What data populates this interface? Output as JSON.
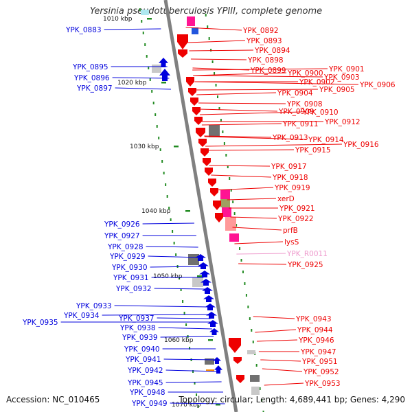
{
  "title": "Yersinia pseudotuberculosis YPIII, complete genome",
  "accession": "Accession: NC_010465",
  "topology": "Topology: circular; Length: 4,689,441 bp; Genes: 4,290",
  "colors": {
    "backbone": "#808080",
    "minus_strand": "#0000dd",
    "plus_strand": "#ee0000",
    "rna": "#ee99cc",
    "tick": "#228b22",
    "tick_label": "#111111",
    "pink_block": "#ff1493",
    "light_pink": "#ff9999",
    "gray_block": "#707070",
    "light_gray": "#c8c8c8",
    "orange": "#ff8c00",
    "olive": "#a0a060",
    "cyan": "#aee8f0"
  },
  "scale": {
    "unit": "kbp",
    "labels": [
      "1010 kbp",
      "1020 kbp",
      "1030 kbp",
      "1040 kbp",
      "1050 kbp",
      "1060 kbp",
      "1070 kbp"
    ]
  },
  "left_genes": [
    "YPK_0883",
    "YPK_0895",
    "YPK_0896",
    "YPK_0897",
    "YPK_0926",
    "YPK_0927",
    "YPK_0928",
    "YPK_0929",
    "YPK_0930",
    "YPK_0931",
    "YPK_0932",
    "YPK_0933",
    "YPK_0934",
    "YPK_0935",
    "YPK_0937",
    "YPK_0938",
    "YPK_0939",
    "YPK_0940",
    "YPK_0941",
    "YPK_0942",
    "YPK_0945",
    "YPK_0948",
    "YPK_0949"
  ],
  "right_genes": [
    "YPK_0892",
    "YPK_0893",
    "YPK_0894",
    "YPK_0898",
    "YPK_0899",
    "YPK_0900",
    "YPK_0901",
    "YPK_0902",
    "YPK_0903",
    "YPK_0906",
    "YPK_0904",
    "YPK_0905",
    "YPK_0908",
    "YPK_0909",
    "YPK_0910",
    "YPK_0911",
    "YPK_0912",
    "YPK_0913",
    "YPK_0914",
    "YPK_0916",
    "YPK_0915",
    "YPK_0917",
    "YPK_0918",
    "YPK_0919",
    "xerD",
    "YPK_0921",
    "YPK_0922",
    "prfB",
    "lysS",
    "YPK_R0011",
    "YPK_0925",
    "YPK_0943",
    "YPK_0944",
    "YPK_0946",
    "YPK_0947",
    "YPK_0951",
    "YPK_0952",
    "YPK_0953"
  ],
  "rna_genes": [
    "YPK_R0011"
  ]
}
